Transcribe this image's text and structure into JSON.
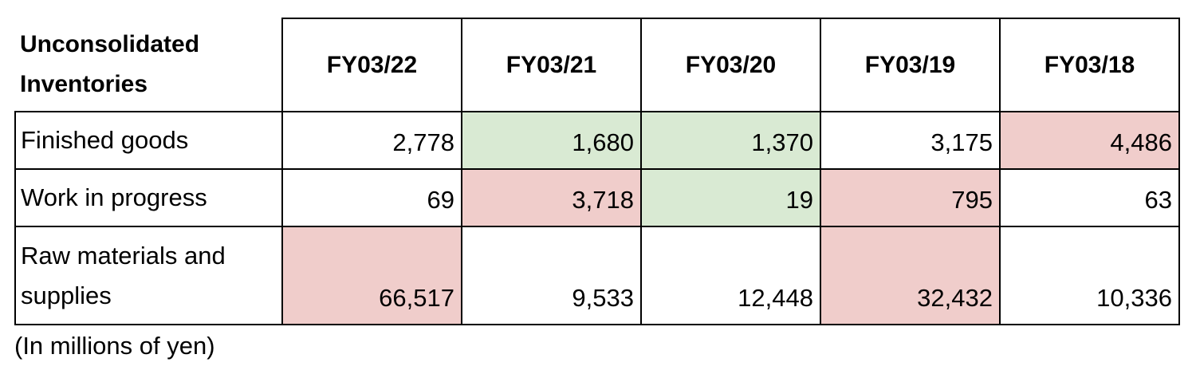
{
  "table": {
    "corner": "Unconsolidated Inventories",
    "columns": [
      "FY03/22",
      "FY03/21",
      "FY03/20",
      "FY03/19",
      "FY03/18"
    ],
    "rows": [
      {
        "label": "Finished goods",
        "values": [
          "2,778",
          "1,680",
          "1,370",
          "3,175",
          "4,486"
        ],
        "colors": [
          null,
          "#d9ead3",
          "#d9ead3",
          null,
          "#f0cdcb"
        ]
      },
      {
        "label": "Work in progress",
        "values": [
          "69",
          "3,718",
          "19",
          "795",
          "63"
        ],
        "colors": [
          null,
          "#f0cdcb",
          "#d9ead3",
          "#f0cdcb",
          null
        ]
      },
      {
        "label": "Raw materials and supplies",
        "values": [
          "66,517",
          "9,533",
          "12,448",
          "32,432",
          "10,336"
        ],
        "colors": [
          "#f0cdcb",
          null,
          null,
          "#f0cdcb",
          null
        ]
      }
    ],
    "note": "(In millions of yen)"
  }
}
